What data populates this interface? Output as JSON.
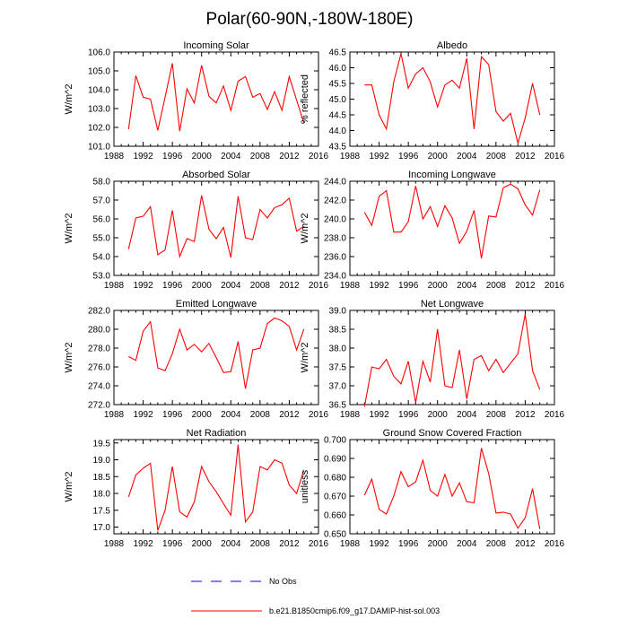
{
  "figure": {
    "title": "Polar(60-90N,-180W-180E)"
  },
  "legend": {
    "entries": [
      {
        "label": "No Obs",
        "color": "#0000ff",
        "style": "dashed"
      },
      {
        "label": "b.e21.B1850cmip6.f09_g17.DAMIP-hist-sol.003",
        "color": "#ff0000",
        "style": "solid"
      }
    ]
  },
  "colors": {
    "series": "#ff0000",
    "no_obs": "#0000ff",
    "axis": "#000000"
  },
  "chart_data": [
    {
      "type": "line",
      "title": "Incoming Solar",
      "ylabel": "W/m^2",
      "xlim": [
        1988,
        2016
      ],
      "xticks": [
        1988,
        1992,
        1996,
        2000,
        2004,
        2008,
        2012,
        2016
      ],
      "ylim": [
        101.0,
        106.0
      ],
      "yticks": [
        "101.0",
        "102.0",
        "103.0",
        "104.0",
        "105.0",
        "106.0"
      ],
      "grid": false,
      "x": [
        1990,
        1991,
        1992,
        1993,
        1994,
        1995,
        1996,
        1997,
        1998,
        1999,
        2000,
        2001,
        2002,
        2003,
        2004,
        2005,
        2006,
        2007,
        2008,
        2009,
        2010,
        2011,
        2012,
        2013,
        2014
      ],
      "series": [
        {
          "name": "b.e21.B1850cmip6.f09_g17.DAMIP-hist-sol.003",
          "values": [
            101.9,
            104.75,
            103.6,
            103.5,
            101.85,
            103.6,
            105.4,
            101.8,
            104.05,
            103.3,
            105.3,
            103.65,
            103.3,
            104.2,
            102.9,
            104.45,
            104.7,
            103.6,
            103.8,
            102.95,
            103.9,
            102.9,
            104.7,
            103.45,
            102.25
          ]
        }
      ]
    },
    {
      "type": "line",
      "title": "Albedo",
      "ylabel": "% reflected",
      "xlim": [
        1988,
        2016
      ],
      "xticks": [
        1988,
        1992,
        1996,
        2000,
        2004,
        2008,
        2012,
        2016
      ],
      "ylim": [
        43.5,
        46.5
      ],
      "yticks": [
        "43.5",
        "44.0",
        "44.5",
        "45.0",
        "45.5",
        "46.0",
        "46.5"
      ],
      "grid": false,
      "x": [
        1990,
        1991,
        1992,
        1993,
        1994,
        1995,
        1996,
        1997,
        1998,
        1999,
        2000,
        2001,
        2002,
        2003,
        2004,
        2005,
        2006,
        2007,
        2008,
        2009,
        2010,
        2011,
        2012,
        2013,
        2014
      ],
      "series": [
        {
          "name": "b.e21.B1850cmip6.f09_g17.DAMIP-hist-sol.003",
          "values": [
            45.45,
            45.45,
            44.5,
            44.05,
            45.55,
            46.45,
            45.35,
            45.8,
            46.0,
            45.55,
            44.75,
            45.45,
            45.6,
            45.35,
            46.3,
            44.05,
            46.35,
            46.1,
            44.6,
            44.3,
            44.55,
            43.6,
            44.4,
            45.5,
            44.5
          ]
        }
      ]
    },
    {
      "type": "line",
      "title": "Absorbed Solar",
      "ylabel": "W/m^2",
      "xlim": [
        1988,
        2016
      ],
      "xticks": [
        1988,
        1992,
        1996,
        2000,
        2004,
        2008,
        2012,
        2016
      ],
      "ylim": [
        53.0,
        58.0
      ],
      "yticks": [
        "53.0",
        "54.0",
        "55.0",
        "56.0",
        "57.0",
        "58.0"
      ],
      "grid": false,
      "x": [
        1990,
        1991,
        1992,
        1993,
        1994,
        1995,
        1996,
        1997,
        1998,
        1999,
        2000,
        2001,
        2002,
        2003,
        2004,
        2005,
        2006,
        2007,
        2008,
        2009,
        2010,
        2011,
        2012,
        2013,
        2014
      ],
      "series": [
        {
          "name": "b.e21.B1850cmip6.f09_g17.DAMIP-hist-sol.003",
          "values": [
            54.4,
            56.05,
            56.15,
            56.65,
            54.1,
            54.35,
            56.45,
            54.0,
            54.95,
            54.8,
            57.25,
            55.45,
            54.95,
            55.55,
            53.95,
            57.2,
            55.0,
            54.9,
            56.5,
            56.05,
            56.6,
            56.75,
            57.1,
            55.35,
            55.6
          ]
        }
      ]
    },
    {
      "type": "line",
      "title": "Incoming Longwave",
      "ylabel": "W/m^2",
      "xlim": [
        1988,
        2016
      ],
      "xticks": [
        1988,
        1992,
        1996,
        2000,
        2004,
        2008,
        2012,
        2016
      ],
      "ylim": [
        234.0,
        244.0
      ],
      "yticks": [
        "234.0",
        "236.0",
        "238.0",
        "240.0",
        "242.0",
        "244.0"
      ],
      "grid": false,
      "x": [
        1990,
        1991,
        1992,
        1993,
        1994,
        1995,
        1996,
        1997,
        1998,
        1999,
        2000,
        2001,
        2002,
        2003,
        2004,
        2005,
        2006,
        2007,
        2008,
        2009,
        2010,
        2011,
        2012,
        2013,
        2014
      ],
      "series": [
        {
          "name": "b.e21.B1850cmip6.f09_g17.DAMIP-hist-sol.003",
          "values": [
            240.7,
            239.3,
            242.4,
            243.0,
            238.6,
            238.6,
            239.7,
            243.5,
            240.0,
            241.3,
            239.2,
            241.4,
            240.1,
            237.4,
            238.7,
            240.9,
            235.8,
            240.3,
            240.2,
            243.3,
            243.7,
            243.2,
            241.5,
            240.4,
            243.1
          ]
        }
      ]
    },
    {
      "type": "line",
      "title": "Emitted Longwave",
      "ylabel": "W/m^2",
      "xlim": [
        1988,
        2016
      ],
      "xticks": [
        1988,
        1992,
        1996,
        2000,
        2004,
        2008,
        2012,
        2016
      ],
      "ylim": [
        272.0,
        282.0
      ],
      "yticks": [
        "272.0",
        "274.0",
        "276.0",
        "278.0",
        "280.0",
        "282.0"
      ],
      "grid": false,
      "x": [
        1990,
        1991,
        1992,
        1993,
        1994,
        1995,
        1996,
        1997,
        1998,
        1999,
        2000,
        2001,
        2002,
        2003,
        2004,
        2005,
        2006,
        2007,
        2008,
        2009,
        2010,
        2011,
        2012,
        2013,
        2014
      ],
      "series": [
        {
          "name": "b.e21.B1850cmip6.f09_g17.DAMIP-hist-sol.003",
          "values": [
            277.1,
            276.7,
            279.8,
            280.8,
            275.9,
            275.6,
            277.4,
            280.0,
            277.8,
            278.4,
            277.6,
            278.5,
            277.0,
            275.4,
            275.5,
            278.7,
            273.7,
            277.8,
            278.0,
            280.6,
            281.2,
            280.9,
            280.3,
            277.8,
            280.0
          ]
        }
      ]
    },
    {
      "type": "line",
      "title": "Net Longwave",
      "ylabel": "W/m^2",
      "xlim": [
        1988,
        2016
      ],
      "xticks": [
        1988,
        1992,
        1996,
        2000,
        2004,
        2008,
        2012,
        2016
      ],
      "ylim": [
        36.5,
        39.0
      ],
      "yticks": [
        "36.5",
        "37.0",
        "37.5",
        "38.0",
        "38.5",
        "39.0"
      ],
      "grid": false,
      "x": [
        1990,
        1991,
        1992,
        1993,
        1994,
        1995,
        1996,
        1997,
        1998,
        1999,
        2000,
        2001,
        2002,
        2003,
        2004,
        2005,
        2006,
        2007,
        2008,
        2009,
        2010,
        2011,
        2012,
        2013,
        2014
      ],
      "series": [
        {
          "name": "b.e21.B1850cmip6.f09_g17.DAMIP-hist-sol.003",
          "values": [
            36.45,
            37.5,
            37.45,
            37.7,
            37.25,
            37.05,
            37.65,
            36.55,
            37.65,
            37.1,
            38.5,
            37.0,
            36.95,
            37.95,
            36.65,
            37.7,
            37.8,
            37.4,
            37.7,
            37.35,
            37.6,
            37.85,
            38.9,
            37.4,
            36.9
          ]
        }
      ]
    },
    {
      "type": "line",
      "title": "Net Radiation",
      "ylabel": "W/m^2",
      "xlim": [
        1988,
        2016
      ],
      "xticks": [
        1988,
        1992,
        1996,
        2000,
        2004,
        2008,
        2012,
        2016
      ],
      "ylim": [
        16.8,
        19.6
      ],
      "yticks": [
        "17.0",
        "17.5",
        "18.0",
        "18.5",
        "19.0",
        "19.5"
      ],
      "grid": false,
      "x": [
        1990,
        1991,
        1992,
        1993,
        1994,
        1995,
        1996,
        1997,
        1998,
        1999,
        2000,
        2001,
        2002,
        2003,
        2004,
        2005,
        2006,
        2007,
        2008,
        2009,
        2010,
        2011,
        2012,
        2013,
        2014
      ],
      "series": [
        {
          "name": "b.e21.B1850cmip6.f09_g17.DAMIP-hist-sol.003",
          "values": [
            17.9,
            18.55,
            18.75,
            18.9,
            16.9,
            17.5,
            18.8,
            17.45,
            17.3,
            17.75,
            18.8,
            18.35,
            18.05,
            17.7,
            17.35,
            19.45,
            17.15,
            17.45,
            18.8,
            18.7,
            19.0,
            18.9,
            18.25,
            18.0,
            18.7
          ]
        }
      ]
    },
    {
      "type": "line",
      "title": "Ground Snow Covered Fraction",
      "ylabel": "unitless",
      "xlim": [
        1988,
        2016
      ],
      "xticks": [
        1988,
        1992,
        1996,
        2000,
        2004,
        2008,
        2012,
        2016
      ],
      "ylim": [
        0.65,
        0.7
      ],
      "yticks": [
        "0.650",
        "0.660",
        "0.670",
        "0.680",
        "0.690",
        "0.700"
      ],
      "grid": false,
      "x": [
        1990,
        1991,
        1992,
        1993,
        1994,
        1995,
        1996,
        1997,
        1998,
        1999,
        2000,
        2001,
        2002,
        2003,
        2004,
        2005,
        2006,
        2007,
        2008,
        2009,
        2010,
        2011,
        2012,
        2013,
        2014
      ],
      "series": [
        {
          "name": "b.e21.B1850cmip6.f09_g17.DAMIP-hist-sol.003",
          "values": [
            0.6705,
            0.679,
            0.663,
            0.6605,
            0.67,
            0.683,
            0.675,
            0.6775,
            0.689,
            0.673,
            0.67,
            0.6815,
            0.67,
            0.677,
            0.667,
            0.6665,
            0.6955,
            0.682,
            0.661,
            0.6615,
            0.6605,
            0.653,
            0.6585,
            0.674,
            0.6525
          ]
        }
      ]
    }
  ]
}
